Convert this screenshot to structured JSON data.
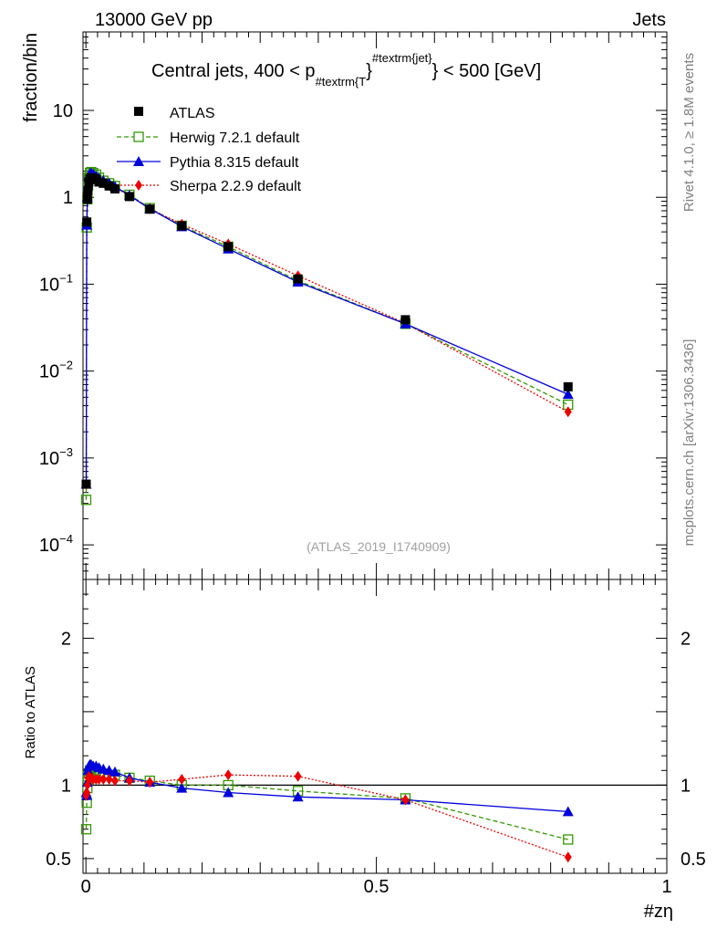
{
  "header": {
    "left": "13000 GeV pp",
    "right": "Jets",
    "side_rivet": "Rivet 4.1.0, ≥ 1.8M events",
    "side_mcplots": "mcplots.cern.ch [arXiv:1306.3436]",
    "watermark": "(ATLAS_2019_I1740909)"
  },
  "chart_data": [
    {
      "panel": "main",
      "type": "scatter",
      "title": {
        "prefix": "Central jets, 400 < p",
        "sub": "#textrm{T",
        "brace": "}",
        "sup": "#textrm{jet}",
        "suffix": "} < 500 [GeV]"
      },
      "ylabel": "fraction/bin",
      "yscale": "log",
      "ylim": [
        4e-05,
        80
      ],
      "xlim": [
        -0.005,
        1
      ],
      "y_ticks": [
        {
          "value": 0.0001,
          "base": "10",
          "exp": "−4"
        },
        {
          "value": 0.001,
          "base": "10",
          "exp": "−3"
        },
        {
          "value": 0.01,
          "base": "10",
          "exp": "−2"
        },
        {
          "value": 0.1,
          "base": "10",
          "exp": "−1"
        },
        {
          "value": 1,
          "base": "1",
          "exp": ""
        },
        {
          "value": 10,
          "base": "10",
          "exp": ""
        }
      ],
      "x": [
        0.0005,
        0.0015,
        0.0025,
        0.0035,
        0.005,
        0.007,
        0.009,
        0.0125,
        0.0175,
        0.0225,
        0.03,
        0.04,
        0.05,
        0.075,
        0.11,
        0.165,
        0.245,
        0.365,
        0.55,
        0.83
      ],
      "series": [
        {
          "name": "ATLAS",
          "values": [
            0.0005,
            0.52,
            0.95,
            1.2,
            1.5,
            1.62,
            1.68,
            1.66,
            1.6,
            1.5,
            1.45,
            1.35,
            1.25,
            1.02,
            0.73,
            0.47,
            0.27,
            0.115,
            0.039,
            0.0066
          ]
        },
        {
          "name": "Herwig 7.2.1 default",
          "values": [
            0.00033,
            0.45,
            0.95,
            1.35,
            1.68,
            1.9,
            1.95,
            1.9,
            1.82,
            1.68,
            1.55,
            1.45,
            1.35,
            1.07,
            0.75,
            0.47,
            0.27,
            0.11,
            0.035,
            0.0041
          ]
        },
        {
          "name": "Pythia 8.315 default",
          "values": [
            0.0005,
            0.48,
            1.0,
            1.4,
            1.75,
            1.88,
            1.9,
            1.85,
            1.76,
            1.66,
            1.56,
            1.45,
            1.33,
            1.05,
            0.74,
            0.46,
            0.255,
            0.106,
            0.035,
            0.0054
          ]
        },
        {
          "name": "Sherpa 2.2.9 default",
          "values": [
            0.0005,
            0.5,
            0.95,
            1.3,
            1.62,
            1.75,
            1.78,
            1.74,
            1.68,
            1.58,
            1.5,
            1.4,
            1.3,
            1.04,
            0.74,
            0.49,
            0.29,
            0.125,
            0.0355,
            0.0034
          ]
        }
      ]
    },
    {
      "panel": "ratio",
      "type": "scatter",
      "ylabel": "Ratio to ATLAS",
      "xlabel": "#zη",
      "ylim": [
        0.4,
        2.4
      ],
      "xlim": [
        -0.005,
        1
      ],
      "y_ticks": [
        {
          "value": 0.5,
          "label": "0.5"
        },
        {
          "value": 1,
          "label": "1"
        },
        {
          "value": 2,
          "label": "2"
        }
      ],
      "x_ticks": [
        {
          "value": 0,
          "label": "0"
        },
        {
          "value": 0.5,
          "label": "0.5"
        },
        {
          "value": 1,
          "label": "1"
        }
      ],
      "x": [
        0.0005,
        0.0015,
        0.0025,
        0.0035,
        0.005,
        0.007,
        0.009,
        0.0125,
        0.0175,
        0.0225,
        0.03,
        0.04,
        0.05,
        0.075,
        0.11,
        0.165,
        0.245,
        0.365,
        0.55,
        0.83
      ],
      "series": [
        {
          "name": "Herwig 7.2.1 default",
          "values": [
            0.7,
            0.88,
            0.98,
            1.06,
            1.08,
            1.1,
            1.1,
            1.1,
            1.1,
            1.09,
            1.08,
            1.07,
            1.07,
            1.05,
            1.03,
            1.0,
            1.0,
            0.96,
            0.91,
            0.63
          ]
        },
        {
          "name": "Pythia 8.315 default",
          "values": [
            0.95,
            0.93,
            1.02,
            1.1,
            1.13,
            1.14,
            1.14,
            1.13,
            1.13,
            1.12,
            1.11,
            1.1,
            1.09,
            1.05,
            1.02,
            0.98,
            0.95,
            0.92,
            0.9,
            0.82
          ]
        },
        {
          "name": "Sherpa 2.2.9 default",
          "values": [
            0.93,
            0.95,
            1.0,
            1.05,
            1.06,
            1.05,
            1.05,
            1.04,
            1.04,
            1.04,
            1.04,
            1.04,
            1.03,
            1.03,
            1.02,
            1.04,
            1.07,
            1.06,
            0.9,
            0.51
          ]
        }
      ]
    }
  ],
  "styles": {
    "ATLAS": {
      "color": "#000000",
      "marker": "square-filled",
      "dash": ""
    },
    "Herwig 7.2.1 default": {
      "color": "#339900",
      "marker": "square-open",
      "dash": "5,3"
    },
    "Pythia 8.315 default": {
      "color": "#0000dd",
      "marker": "triangle",
      "dash": ""
    },
    "Sherpa 2.2.9 default": {
      "color": "#ee0000",
      "marker": "diamond",
      "dash": "2,2"
    }
  }
}
